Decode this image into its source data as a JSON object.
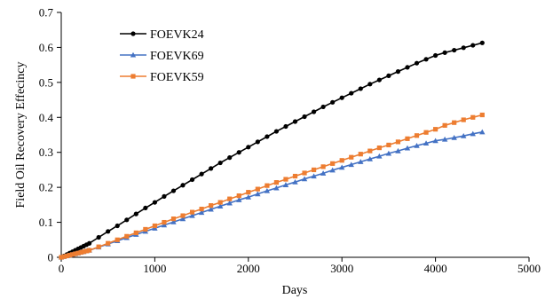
{
  "chart_data": {
    "type": "line",
    "xlabel": "Days",
    "ylabel": "Field Oil Recovery Effecincy",
    "xlim": [
      0,
      5000
    ],
    "ylim": [
      0,
      0.7
    ],
    "xticks": [
      0,
      1000,
      2000,
      3000,
      4000,
      5000
    ],
    "yticks": [
      0,
      0.1,
      0.2,
      0.3,
      0.4,
      0.5,
      0.6,
      0.7
    ],
    "xtick_labels": [
      "0",
      "1000",
      "2000",
      "3000",
      "4000",
      "5000"
    ],
    "ytick_labels": [
      "0",
      "0.1",
      "0.2",
      "0.3",
      "0.4",
      "0.5",
      "0.6",
      "0.7"
    ],
    "grid": false,
    "legend_position": "top-left",
    "series": [
      {
        "name": "FOEVK24",
        "color": "#000000",
        "marker": "circle",
        "x": [
          0,
          30,
          60,
          90,
          120,
          150,
          180,
          210,
          240,
          270,
          300,
          400,
          500,
          600,
          700,
          800,
          900,
          1000,
          1100,
          1200,
          1300,
          1400,
          1500,
          1600,
          1700,
          1800,
          1900,
          2000,
          2100,
          2200,
          2300,
          2400,
          2500,
          2600,
          2700,
          2800,
          2900,
          3000,
          3100,
          3200,
          3300,
          3400,
          3500,
          3600,
          3700,
          3800,
          3900,
          4000,
          4100,
          4200,
          4300,
          4400,
          4500
        ],
        "y": [
          0,
          0.004,
          0.008,
          0.012,
          0.016,
          0.02,
          0.024,
          0.028,
          0.032,
          0.036,
          0.04,
          0.057,
          0.074,
          0.09,
          0.107,
          0.124,
          0.141,
          0.157,
          0.174,
          0.19,
          0.206,
          0.222,
          0.238,
          0.254,
          0.27,
          0.285,
          0.3,
          0.315,
          0.33,
          0.345,
          0.36,
          0.374,
          0.388,
          0.402,
          0.416,
          0.43,
          0.443,
          0.456,
          0.469,
          0.482,
          0.495,
          0.507,
          0.519,
          0.531,
          0.543,
          0.555,
          0.566,
          0.577,
          0.585,
          0.592,
          0.599,
          0.606,
          0.613
        ]
      },
      {
        "name": "FOEVK69",
        "color": "#4472C4",
        "marker": "triangle",
        "x": [
          0,
          30,
          60,
          90,
          120,
          150,
          180,
          210,
          240,
          270,
          300,
          400,
          500,
          600,
          700,
          800,
          900,
          1000,
          1100,
          1200,
          1300,
          1400,
          1500,
          1600,
          1700,
          1800,
          1900,
          2000,
          2100,
          2200,
          2300,
          2400,
          2500,
          2600,
          2700,
          2800,
          2900,
          3000,
          3100,
          3200,
          3300,
          3400,
          3500,
          3600,
          3700,
          3800,
          3900,
          4000,
          4100,
          4200,
          4300,
          4400,
          4500
        ],
        "y": [
          0,
          0.002,
          0.004,
          0.006,
          0.008,
          0.01,
          0.012,
          0.014,
          0.016,
          0.018,
          0.02,
          0.029,
          0.038,
          0.047,
          0.056,
          0.065,
          0.074,
          0.083,
          0.092,
          0.101,
          0.11,
          0.119,
          0.128,
          0.137,
          0.146,
          0.155,
          0.164,
          0.172,
          0.181,
          0.19,
          0.198,
          0.207,
          0.215,
          0.224,
          0.232,
          0.24,
          0.249,
          0.257,
          0.265,
          0.273,
          0.281,
          0.289,
          0.297,
          0.304,
          0.312,
          0.319,
          0.326,
          0.333,
          0.337,
          0.342,
          0.347,
          0.353,
          0.358
        ]
      },
      {
        "name": "FOEVK59",
        "color": "#ED7D31",
        "marker": "square",
        "x": [
          0,
          30,
          60,
          90,
          120,
          150,
          180,
          210,
          240,
          270,
          300,
          400,
          500,
          600,
          700,
          800,
          900,
          1000,
          1100,
          1200,
          1300,
          1400,
          1500,
          1600,
          1700,
          1800,
          1900,
          2000,
          2100,
          2200,
          2300,
          2400,
          2500,
          2600,
          2700,
          2800,
          2900,
          3000,
          3100,
          3200,
          3300,
          3400,
          3500,
          3600,
          3700,
          3800,
          3900,
          4000,
          4100,
          4200,
          4300,
          4400,
          4500
        ],
        "y": [
          0,
          0.002,
          0.004,
          0.006,
          0.008,
          0.01,
          0.012,
          0.014,
          0.016,
          0.018,
          0.02,
          0.03,
          0.04,
          0.05,
          0.06,
          0.07,
          0.08,
          0.09,
          0.1,
          0.11,
          0.119,
          0.129,
          0.138,
          0.148,
          0.157,
          0.167,
          0.176,
          0.186,
          0.195,
          0.205,
          0.214,
          0.223,
          0.232,
          0.241,
          0.25,
          0.259,
          0.268,
          0.277,
          0.286,
          0.295,
          0.304,
          0.313,
          0.321,
          0.33,
          0.339,
          0.348,
          0.357,
          0.366,
          0.377,
          0.385,
          0.393,
          0.4,
          0.407
        ]
      }
    ]
  }
}
